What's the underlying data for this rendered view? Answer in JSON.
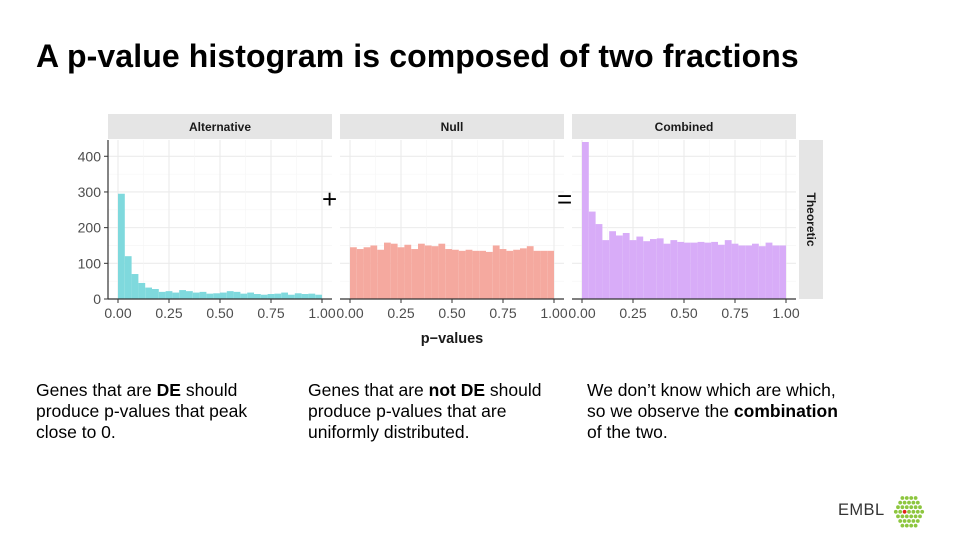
{
  "slide": {
    "title": "A p-value histogram is composed of two fractions",
    "operator_plus": "+",
    "operator_equals": "=",
    "captions": [
      {
        "pre": "Genes that are ",
        "bold": "DE",
        "post": " should produce p-values that peak close to 0."
      },
      {
        "pre": "Genes that are ",
        "bold": "not DE",
        "post": " should produce p-values that are uniformly distributed."
      },
      {
        "pre": "We don’t know which are which, so we observe the ",
        "bold": "combination",
        "post": " of the two."
      }
    ],
    "logo_text": "EMBL",
    "colors": {
      "accent_logo": "#8dc63f",
      "logo_dot": "#e2231a"
    }
  },
  "chart_data": {
    "type": "bar",
    "xlabel": "p−values",
    "ylabel": "",
    "row_strip": "Theoretic",
    "ylim": [
      0,
      440
    ],
    "xlim": [
      0,
      1
    ],
    "yticks": [
      0,
      100,
      200,
      300,
      400
    ],
    "xticks": [
      0,
      0.25,
      0.5,
      0.75,
      1
    ],
    "xtick_labels": [
      "0.00",
      "0.25",
      "0.50",
      "0.75",
      "1.00"
    ],
    "grid": true,
    "bin_width": 0.0333,
    "panels": [
      {
        "name": "Alternative",
        "color": "#7fd9dd",
        "values": [
          295,
          120,
          70,
          45,
          32,
          28,
          20,
          22,
          18,
          25,
          22,
          18,
          20,
          15,
          16,
          18,
          22,
          20,
          15,
          18,
          14,
          12,
          14,
          15,
          18,
          12,
          16,
          14,
          15,
          12
        ]
      },
      {
        "name": "Null",
        "color": "#f5a99f",
        "values": [
          145,
          140,
          145,
          150,
          138,
          158,
          155,
          145,
          152,
          140,
          155,
          150,
          148,
          155,
          140,
          138,
          135,
          138,
          135,
          135,
          132,
          150,
          140,
          135,
          138,
          142,
          148,
          135,
          135,
          135
        ]
      },
      {
        "name": "Combined",
        "color": "#d8acf8",
        "values": [
          440,
          245,
          210,
          165,
          190,
          178,
          185,
          165,
          175,
          162,
          168,
          170,
          155,
          165,
          160,
          158,
          158,
          160,
          158,
          160,
          152,
          165,
          155,
          150,
          150,
          155,
          148,
          158,
          150,
          150
        ]
      }
    ]
  }
}
